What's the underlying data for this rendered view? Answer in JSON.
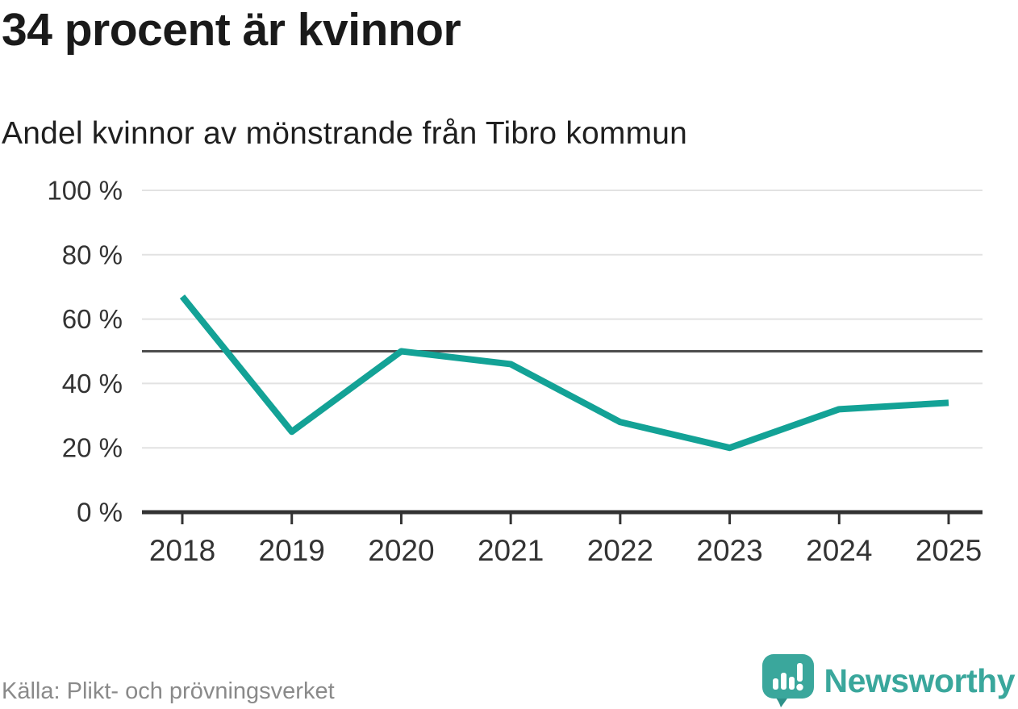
{
  "header": {
    "title": "34 procent är kvinnor",
    "subtitle": "Andel kvinnor av mönstrande från Tibro kommun"
  },
  "chart_data": {
    "type": "line",
    "title": "34 procent är kvinnor",
    "subtitle": "Andel kvinnor av mönstrande från Tibro kommun",
    "x": [
      "2018",
      "2019",
      "2020",
      "2021",
      "2022",
      "2023",
      "2024",
      "2025"
    ],
    "series": [
      {
        "name": "Andel kvinnor av mönstrande",
        "values": [
          67,
          25,
          50,
          46,
          28,
          20,
          32,
          34
        ]
      }
    ],
    "unit": "%",
    "ylim": [
      0,
      100
    ],
    "yticks": [
      0,
      20,
      40,
      60,
      80,
      100
    ],
    "ytick_suffix": " %",
    "reference_line": 50,
    "grid": true,
    "legend_position": "none",
    "line_color": "#13a296",
    "reference_color": "#4d4d4d",
    "axis_color": "#333333",
    "grid_color": "#e2e2e2",
    "tick_label_color": "#333333"
  },
  "footer": {
    "source": "Källa: Plikt- och prövningsverket",
    "brand": "Newsworthy",
    "brand_color": "#3aa79c",
    "brand_icon": "newsworthy-speech-bubble-bar-chart-icon",
    "brand_icon_color": "#3aa79c",
    "brand_icon_tail_color": "#2f9189"
  }
}
